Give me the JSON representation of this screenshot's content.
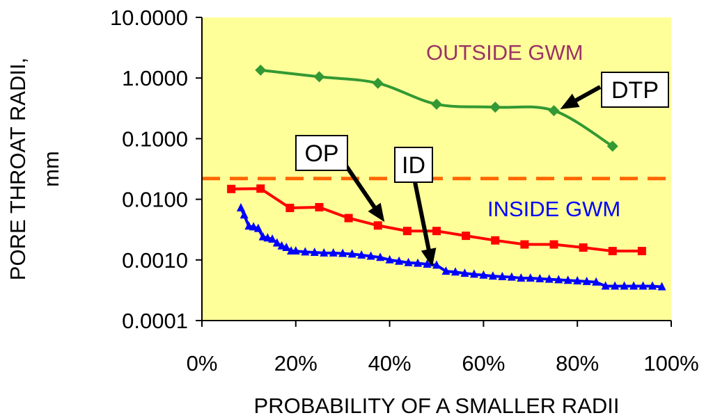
{
  "chart_data": {
    "type": "line",
    "title": "",
    "xlabel": "PROBABILITY OF A SMALLER RADII",
    "ylabel_lines": [
      "PORE THROAT RADII,",
      "mm"
    ],
    "yscale": "log",
    "xlim": [
      0,
      1
    ],
    "ylim": [
      0.0001,
      10
    ],
    "x_ticks": [
      0,
      0.2,
      0.4,
      0.6,
      0.8,
      1.0
    ],
    "x_tick_labels": [
      "0%",
      "20%",
      "40%",
      "60%",
      "80%",
      "100%"
    ],
    "y_ticks": [
      0.0001,
      0.001,
      0.01,
      0.1,
      1,
      10
    ],
    "y_tick_labels": [
      "0.0001",
      "0.0010",
      "0.0100",
      "0.1000",
      "1.0000",
      "10.0000"
    ],
    "plot_background": "#ffff99",
    "threshold": {
      "y": 0.022,
      "color": "#ff6600",
      "style": "dashed"
    },
    "regions": [
      {
        "label": "OUTSIDE GWM",
        "color": "#993366"
      },
      {
        "label": "INSIDE GWM",
        "color": "#0000ff"
      }
    ],
    "series": [
      {
        "name": "DTP",
        "color": "#339933",
        "marker": "diamond",
        "x": [
          0.125,
          0.25,
          0.375,
          0.5,
          0.625,
          0.75,
          0.875
        ],
        "y": [
          1.35,
          1.05,
          0.82,
          0.37,
          0.33,
          0.29,
          0.075
        ]
      },
      {
        "name": "OP",
        "color": "#ff0000",
        "marker": "square",
        "x": [
          0.0625,
          0.125,
          0.1875,
          0.25,
          0.3125,
          0.375,
          0.4375,
          0.5,
          0.5625,
          0.625,
          0.6875,
          0.75,
          0.8125,
          0.875,
          0.9375
        ],
        "y": [
          0.0148,
          0.015,
          0.0072,
          0.0074,
          0.0049,
          0.0037,
          0.003,
          0.003,
          0.0025,
          0.0021,
          0.0018,
          0.0018,
          0.0016,
          0.0014,
          0.0014
        ]
      },
      {
        "name": "ID",
        "color": "#0000ff",
        "marker": "triangle",
        "x": [
          0.083,
          0.09,
          0.1,
          0.11,
          0.12,
          0.13,
          0.14,
          0.15,
          0.16,
          0.17,
          0.18,
          0.19,
          0.2,
          0.22,
          0.24,
          0.26,
          0.28,
          0.3,
          0.32,
          0.34,
          0.36,
          0.38,
          0.4,
          0.42,
          0.44,
          0.46,
          0.48,
          0.5,
          0.52,
          0.54,
          0.56,
          0.58,
          0.6,
          0.62,
          0.64,
          0.66,
          0.68,
          0.7,
          0.72,
          0.74,
          0.76,
          0.78,
          0.8,
          0.82,
          0.84,
          0.86,
          0.88,
          0.9,
          0.92,
          0.94,
          0.96,
          0.98
        ],
        "y": [
          0.0072,
          0.0055,
          0.0036,
          0.0035,
          0.0033,
          0.0024,
          0.0023,
          0.0022,
          0.0019,
          0.0017,
          0.0016,
          0.0014,
          0.0014,
          0.00135,
          0.00133,
          0.0013,
          0.0013,
          0.00128,
          0.00125,
          0.0012,
          0.00115,
          0.0011,
          0.001,
          0.00095,
          0.0009,
          0.00088,
          0.00085,
          0.00082,
          0.00065,
          0.00063,
          0.0006,
          0.00058,
          0.00056,
          0.00054,
          0.00053,
          0.00052,
          0.0005,
          0.0005,
          0.00049,
          0.00048,
          0.00047,
          0.00046,
          0.00045,
          0.00044,
          0.00043,
          0.00037,
          0.00037,
          0.00037,
          0.00037,
          0.00037,
          0.00037,
          0.00036
        ]
      }
    ],
    "callouts": [
      {
        "label": "DTP",
        "series": "DTP",
        "x": 0.75,
        "y": 0.29
      },
      {
        "label": "OP",
        "series": "OP",
        "x": 0.375,
        "y": 0.0037
      },
      {
        "label": "ID",
        "series": "ID",
        "x": 0.48,
        "y": 0.00085
      }
    ]
  }
}
